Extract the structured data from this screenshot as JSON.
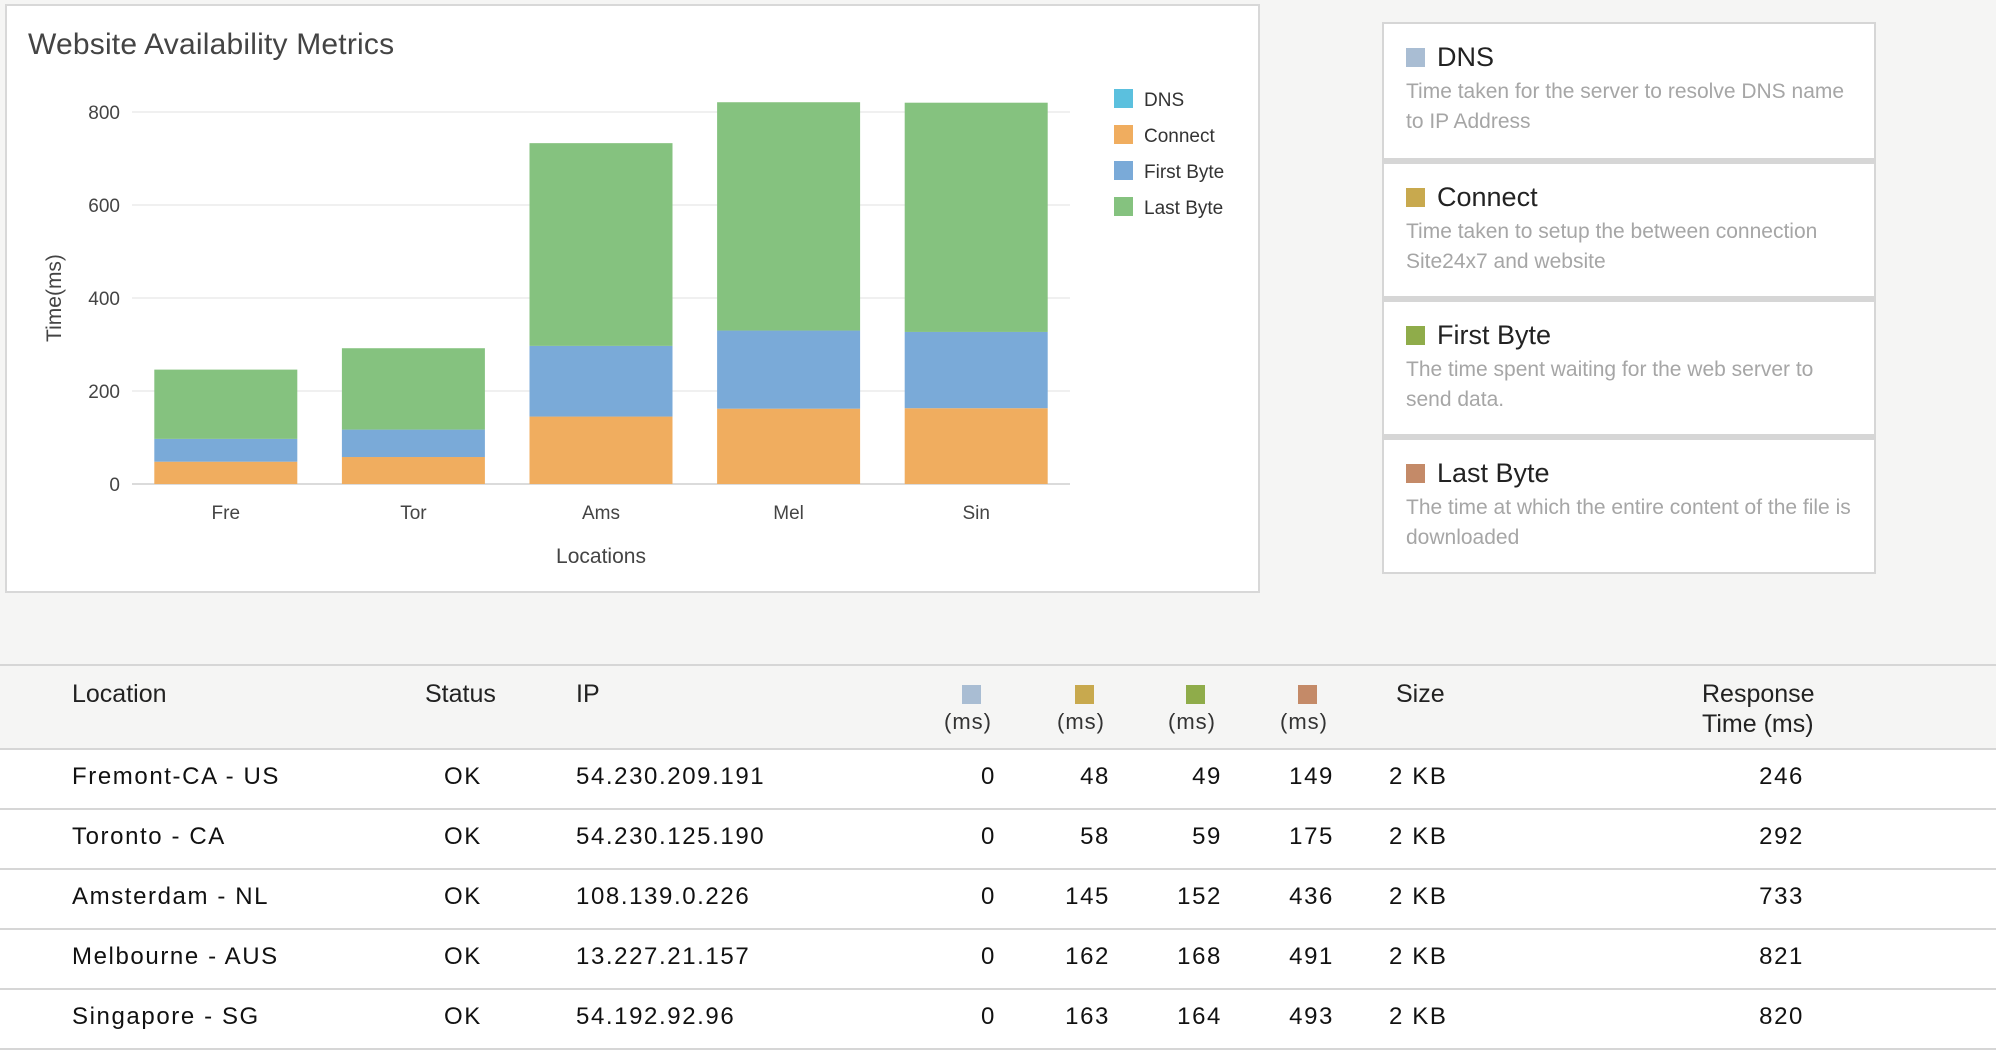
{
  "chart_title": "Website Availability Metrics",
  "chart_data": {
    "type": "bar",
    "stacked": true,
    "title": "Website Availability Metrics",
    "xlabel": "Locations",
    "ylabel": "Time(ms)",
    "ylim": [
      0,
      800
    ],
    "yticks": [
      0,
      200,
      400,
      600,
      800
    ],
    "categories": [
      "Fre",
      "Tor",
      "Ams",
      "Mel",
      "Sin"
    ],
    "series": [
      {
        "name": "DNS",
        "color": "#5bc0de",
        "values": [
          0,
          0,
          0,
          0,
          0
        ]
      },
      {
        "name": "Connect",
        "color": "#f0ad5f",
        "values": [
          48,
          58,
          145,
          162,
          163
        ]
      },
      {
        "name": "First Byte",
        "color": "#7aaad8",
        "values": [
          49,
          59,
          152,
          168,
          164
        ]
      },
      {
        "name": "Last Byte",
        "color": "#85c27f",
        "values": [
          149,
          175,
          436,
          491,
          493
        ]
      }
    ],
    "grid": true,
    "legend": "right"
  },
  "info_cards": [
    {
      "title": "DNS",
      "color": "#a9bdd3",
      "desc": "Time taken for the server to resolve DNS name to IP Address"
    },
    {
      "title": "Connect",
      "color": "#c8a94e",
      "desc": "Time taken to setup the between connection Site24x7 and website"
    },
    {
      "title": "First Byte",
      "color": "#8fac4a",
      "desc": "The time spent waiting for the web server to send data."
    },
    {
      "title": "Last Byte",
      "color": "#c48a68",
      "desc": "The time at which the entire content of the file is downloaded"
    }
  ],
  "table": {
    "headers": {
      "location": "Location",
      "status": "Status",
      "ip": "IP",
      "unit": "(ms)",
      "size": "Size",
      "response_line1": "Response",
      "response_line2": "Time (ms)"
    },
    "metric_colors": [
      "#a9bdd3",
      "#c8a94e",
      "#8fac4a",
      "#c48a68"
    ],
    "rows": [
      {
        "location": "Fremont-CA - US",
        "status": "OK",
        "ip": "54.230.209.191",
        "dns": "0",
        "connect": "48",
        "first_byte": "49",
        "last_byte": "149",
        "size": "2 KB",
        "response": "246"
      },
      {
        "location": "Toronto - CA",
        "status": "OK",
        "ip": "54.230.125.190",
        "dns": "0",
        "connect": "58",
        "first_byte": "59",
        "last_byte": "175",
        "size": "2 KB",
        "response": "292"
      },
      {
        "location": "Amsterdam - NL",
        "status": "OK",
        "ip": "108.139.0.226",
        "dns": "0",
        "connect": "145",
        "first_byte": "152",
        "last_byte": "436",
        "size": "2 KB",
        "response": "733"
      },
      {
        "location": "Melbourne - AUS",
        "status": "OK",
        "ip": "13.227.21.157",
        "dns": "0",
        "connect": "162",
        "first_byte": "168",
        "last_byte": "491",
        "size": "2 KB",
        "response": "821"
      },
      {
        "location": "Singapore - SG",
        "status": "OK",
        "ip": "54.192.92.96",
        "dns": "0",
        "connect": "163",
        "first_byte": "164",
        "last_byte": "493",
        "size": "2 KB",
        "response": "820"
      }
    ]
  }
}
